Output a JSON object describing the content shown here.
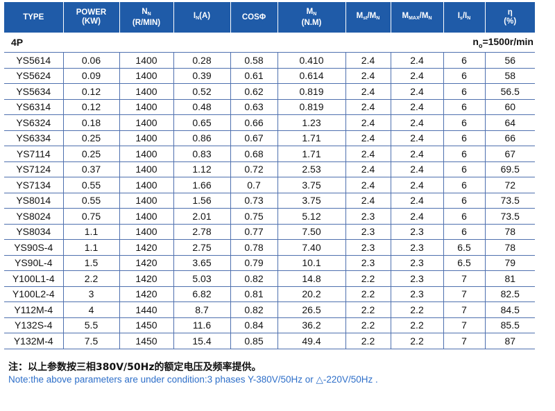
{
  "header": {
    "type": "TYPE",
    "power": "POWER",
    "power_unit": "(KW)",
    "speed": "N",
    "speed_sub": "N",
    "speed_unit": "(R/MIN)",
    "current": "I",
    "current_sub": "N",
    "current_unit": "(A)",
    "cos": "COSΦ",
    "torque": "M",
    "torque_sub": "N",
    "torque_unit": "(N.M)",
    "st_ratio_a": "M",
    "st_ratio_a_sub": "st",
    "st_ratio_sep": "/M",
    "st_ratio_b_sub": "N",
    "max_ratio_a": "M",
    "max_ratio_a_sub": "MAX",
    "max_ratio_sep": "/M",
    "max_ratio_b_sub": "N",
    "ist_a": "I",
    "ist_a_sub": "s",
    "ist_sep": "/I",
    "ist_b_sub": "N",
    "eta": "η",
    "eta_unit": "(%)"
  },
  "group": {
    "label": "4P",
    "sync_prefix": "n",
    "sync_sub": "o",
    "sync_value": "=1500r/min"
  },
  "rows": [
    [
      "YS5614",
      "0.06",
      "1400",
      "0.28",
      "0.58",
      "0.410",
      "2.4",
      "2.4",
      "6",
      "56"
    ],
    [
      "YS5624",
      "0.09",
      "1400",
      "0.39",
      "0.61",
      "0.614",
      "2.4",
      "2.4",
      "6",
      "58"
    ],
    [
      "YS5634",
      "0.12",
      "1400",
      "0.52",
      "0.62",
      "0.819",
      "2.4",
      "2.4",
      "6",
      "56.5"
    ],
    [
      "YS6314",
      "0.12",
      "1400",
      "0.48",
      "0.63",
      "0.819",
      "2.4",
      "2.4",
      "6",
      "60"
    ],
    [
      "YS6324",
      "0.18",
      "1400",
      "0.65",
      "0.66",
      "1.23",
      "2.4",
      "2.4",
      "6",
      "64"
    ],
    [
      "YS6334",
      "0.25",
      "1400",
      "0.86",
      "0.67",
      "1.71",
      "2.4",
      "2.4",
      "6",
      "66"
    ],
    [
      "YS7114",
      "0.25",
      "1400",
      "0.83",
      "0.68",
      "1.71",
      "2.4",
      "2.4",
      "6",
      "67"
    ],
    [
      "YS7124",
      "0.37",
      "1400",
      "1.12",
      "0.72",
      "2.53",
      "2.4",
      "2.4",
      "6",
      "69.5"
    ],
    [
      "YS7134",
      "0.55",
      "1400",
      "1.66",
      "0.7",
      "3.75",
      "2.4",
      "2.4",
      "6",
      "72"
    ],
    [
      "YS8014",
      "0.55",
      "1400",
      "1.56",
      "0.73",
      "3.75",
      "2.4",
      "2.4",
      "6",
      "73.5"
    ],
    [
      "YS8024",
      "0.75",
      "1400",
      "2.01",
      "0.75",
      "5.12",
      "2.3",
      "2.4",
      "6",
      "73.5"
    ],
    [
      "YS8034",
      "1.1",
      "1400",
      "2.78",
      "0.77",
      "7.50",
      "2.3",
      "2.3",
      "6",
      "78"
    ],
    [
      "YS90S-4",
      "1.1",
      "1420",
      "2.75",
      "0.78",
      "7.40",
      "2.3",
      "2.3",
      "6.5",
      "78"
    ],
    [
      "YS90L-4",
      "1.5",
      "1420",
      "3.65",
      "0.79",
      "10.1",
      "2.3",
      "2.3",
      "6.5",
      "79"
    ],
    [
      "Y100L1-4",
      "2.2",
      "1420",
      "5.03",
      "0.82",
      "14.8",
      "2.2",
      "2.3",
      "7",
      "81"
    ],
    [
      "Y100L2-4",
      "3",
      "1420",
      "6.82",
      "0.81",
      "20.2",
      "2.2",
      "2.3",
      "7",
      "82.5"
    ],
    [
      "Y112M-4",
      "4",
      "1440",
      "8.7",
      "0.82",
      "26.5",
      "2.2",
      "2.2",
      "7",
      "84.5"
    ],
    [
      "Y132S-4",
      "5.5",
      "1450",
      "11.6",
      "0.84",
      "36.2",
      "2.2",
      "2.2",
      "7",
      "85.5"
    ],
    [
      "Y132M-4",
      "7.5",
      "1450",
      "15.4",
      "0.85",
      "49.4",
      "2.2",
      "2.2",
      "7",
      "87"
    ]
  ],
  "note_cn": "注：以上参数按三相380V/50Hz的额定电压及频率提供。",
  "note_en": "Note:the above parameters are under condition:3 phases Y-380V/50Hz or △-220V/50Hz ."
}
